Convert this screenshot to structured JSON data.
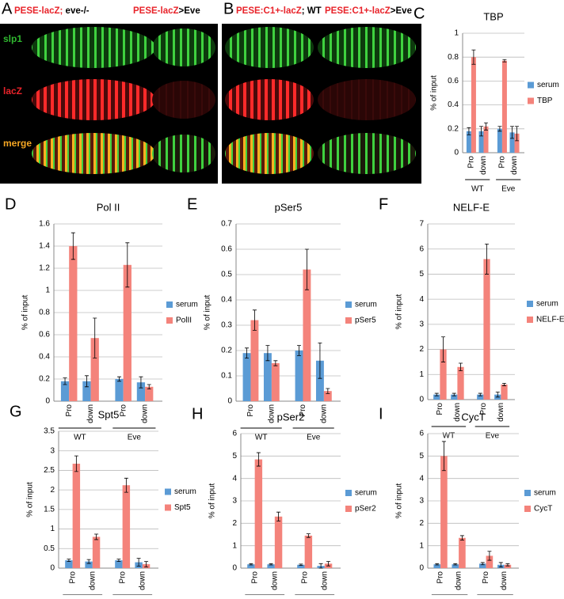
{
  "image_panels": [
    {
      "panel": "A",
      "headers": [
        [
          "PESE-lacZ;",
          " eve-/-"
        ],
        [
          "PESE-lacZ",
          ">Eve"
        ]
      ],
      "row_labels": [
        "slp1",
        "lacZ",
        "merge"
      ]
    },
    {
      "panel": "B",
      "headers": [
        [
          "PESE:C1+-lacZ",
          "; WT"
        ],
        [
          "PESE:C1+-lacZ",
          ">Eve"
        ]
      ]
    }
  ],
  "chart_data": [
    {
      "type": "bar",
      "panel": "C",
      "title": "TBP",
      "y_label": "% of input",
      "categories": [
        "Pro",
        "down",
        "Pro",
        "down"
      ],
      "groups": [
        "WT",
        "Eve"
      ],
      "series": [
        {
          "name": "serum",
          "color": "#5b9bd5",
          "values": [
            0.18,
            0.18,
            0.2,
            0.17
          ],
          "errors": [
            0.03,
            0.04,
            0.02,
            0.05
          ]
        },
        {
          "name": "TBP",
          "color": "#f4837b",
          "values": [
            0.8,
            0.22,
            0.77,
            0.16
          ],
          "errors": [
            0.06,
            0.03,
            0.01,
            0.06
          ]
        }
      ],
      "ylim": [
        0,
        1
      ],
      "yticks": [
        0,
        0.2,
        0.4,
        0.6,
        0.8,
        1
      ],
      "grid": true,
      "legend": "right"
    },
    {
      "type": "bar",
      "panel": "D",
      "title": "Pol II",
      "y_label": "% of input",
      "categories": [
        "Pro",
        "down",
        "Pro",
        "down"
      ],
      "groups": [
        "WT",
        "Eve"
      ],
      "series": [
        {
          "name": "serum",
          "color": "#5b9bd5",
          "values": [
            0.18,
            0.18,
            0.2,
            0.17
          ],
          "errors": [
            0.03,
            0.05,
            0.02,
            0.05
          ]
        },
        {
          "name": "PolII",
          "color": "#f4837b",
          "values": [
            1.4,
            0.57,
            1.23,
            0.13
          ],
          "errors": [
            0.12,
            0.18,
            0.2,
            0.02
          ]
        }
      ],
      "ylim": [
        0,
        1.6
      ],
      "yticks": [
        0,
        0.2,
        0.4,
        0.6,
        0.8,
        1,
        1.2,
        1.4,
        1.6
      ],
      "grid": true,
      "legend": "right"
    },
    {
      "type": "bar",
      "panel": "E",
      "title": "pSer5",
      "y_label": "% of input",
      "categories": [
        "Pro",
        "down",
        "Pro",
        "down"
      ],
      "groups": [
        "WT",
        "Eve"
      ],
      "series": [
        {
          "name": "serum",
          "color": "#5b9bd5",
          "values": [
            0.19,
            0.19,
            0.2,
            0.16
          ],
          "errors": [
            0.02,
            0.03,
            0.02,
            0.07
          ]
        },
        {
          "name": "pSer5",
          "color": "#f4837b",
          "values": [
            0.32,
            0.15,
            0.52,
            0.04
          ],
          "errors": [
            0.04,
            0.01,
            0.08,
            0.01
          ]
        }
      ],
      "ylim": [
        0,
        0.7
      ],
      "yticks": [
        0,
        0.1,
        0.2,
        0.3,
        0.4,
        0.5,
        0.6,
        0.7
      ],
      "grid": true,
      "legend": "right"
    },
    {
      "type": "bar",
      "panel": "F",
      "title": "NELF-E",
      "y_label": "% of input",
      "categories": [
        "Pro",
        "down",
        "Pro",
        "down"
      ],
      "groups": [
        "WT",
        "Eve"
      ],
      "series": [
        {
          "name": "serum",
          "color": "#5b9bd5",
          "values": [
            0.2,
            0.2,
            0.2,
            0.2
          ],
          "errors": [
            0.05,
            0.05,
            0.05,
            0.1
          ]
        },
        {
          "name": "NELF-E",
          "color": "#f4837b",
          "values": [
            2.0,
            1.3,
            5.6,
            0.6
          ],
          "errors": [
            0.5,
            0.15,
            0.6,
            0.05
          ]
        }
      ],
      "ylim": [
        0,
        7
      ],
      "yticks": [
        0,
        1,
        2,
        3,
        4,
        5,
        6,
        7
      ],
      "grid": true,
      "legend": "right"
    },
    {
      "type": "bar",
      "panel": "G",
      "title": "Spt5",
      "y_label": "% of input",
      "categories": [
        "Pro",
        "down",
        "Pro",
        "down"
      ],
      "groups": [
        "WT",
        "Eve"
      ],
      "series": [
        {
          "name": "serum",
          "color": "#5b9bd5",
          "values": [
            0.2,
            0.17,
            0.2,
            0.15
          ],
          "errors": [
            0.03,
            0.05,
            0.03,
            0.1
          ]
        },
        {
          "name": "Spt5",
          "color": "#f4837b",
          "values": [
            2.67,
            0.8,
            2.12,
            0.1
          ],
          "errors": [
            0.2,
            0.07,
            0.18,
            0.07
          ]
        }
      ],
      "ylim": [
        0,
        3.5
      ],
      "yticks": [
        0,
        0.5,
        1,
        1.5,
        2,
        2.5,
        3,
        3.5
      ],
      "grid": true,
      "legend": "right"
    },
    {
      "type": "bar",
      "panel": "H",
      "title": "pSer2",
      "y_label": "% of input",
      "categories": [
        "Pro",
        "down",
        "Pro",
        "down"
      ],
      "groups": [
        "WT",
        "Eve"
      ],
      "series": [
        {
          "name": "serum",
          "color": "#5b9bd5",
          "values": [
            0.17,
            0.17,
            0.15,
            0.1
          ],
          "errors": [
            0.03,
            0.03,
            0.03,
            0.1
          ]
        },
        {
          "name": "pSer2",
          "color": "#f4837b",
          "values": [
            4.85,
            2.3,
            1.45,
            0.2
          ],
          "errors": [
            0.3,
            0.2,
            0.08,
            0.1
          ]
        }
      ],
      "ylim": [
        0,
        6
      ],
      "yticks": [
        0,
        1,
        2,
        3,
        4,
        5,
        6
      ],
      "grid": true,
      "legend": "right"
    },
    {
      "type": "bar",
      "panel": "I",
      "title": "CycT",
      "y_label": "% of input",
      "categories": [
        "Pro",
        "down",
        "Pro",
        "down"
      ],
      "groups": [
        "WT",
        "Eve"
      ],
      "series": [
        {
          "name": "serum",
          "color": "#5b9bd5",
          "values": [
            0.17,
            0.17,
            0.2,
            0.15
          ],
          "errors": [
            0.03,
            0.03,
            0.05,
            0.1
          ]
        },
        {
          "name": "CycT",
          "color": "#f4837b",
          "values": [
            5.0,
            1.35,
            0.55,
            0.15
          ],
          "errors": [
            0.65,
            0.1,
            0.2,
            0.05
          ]
        }
      ],
      "ylim": [
        0,
        6
      ],
      "yticks": [
        0,
        1,
        2,
        3,
        4,
        5,
        6
      ],
      "grid": true,
      "legend": "right"
    }
  ]
}
